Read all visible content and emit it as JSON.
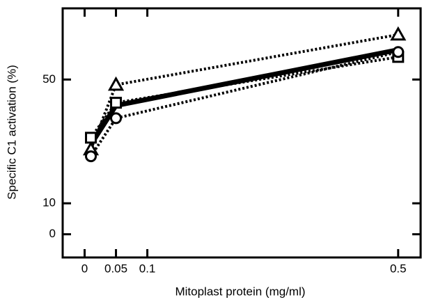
{
  "chart_data": {
    "type": "line",
    "x_label": "Mitoplast protein (mg/ml)",
    "y_label": "Specific C1 activation (%)",
    "x": [
      0.01,
      0.05,
      0.5
    ],
    "series": [
      {
        "color": "#000000",
        "line_style": "dotted",
        "marker": "triangle",
        "values": [
          27.4,
          48.3,
          64.5
        ]
      },
      {
        "color": "#000000",
        "line_style": "dotted",
        "marker": "square",
        "values": [
          31.2,
          42.5,
          57.3
        ]
      },
      {
        "color": "#000000",
        "line_style": "dotted",
        "marker": "circle",
        "values": [
          25.2,
          37.5,
          58.9
        ]
      },
      {
        "color": "#000000",
        "line_style": "solid",
        "values": [
          29,
          41.6,
          59.6
        ]
      }
    ],
    "xlim": [
      -0.035,
      0.538
    ],
    "ylim": [
      -7.5,
      73
    ],
    "xticks": [
      0,
      0.05,
      0.1,
      0.5
    ],
    "yticks": [
      0,
      10,
      50
    ]
  }
}
